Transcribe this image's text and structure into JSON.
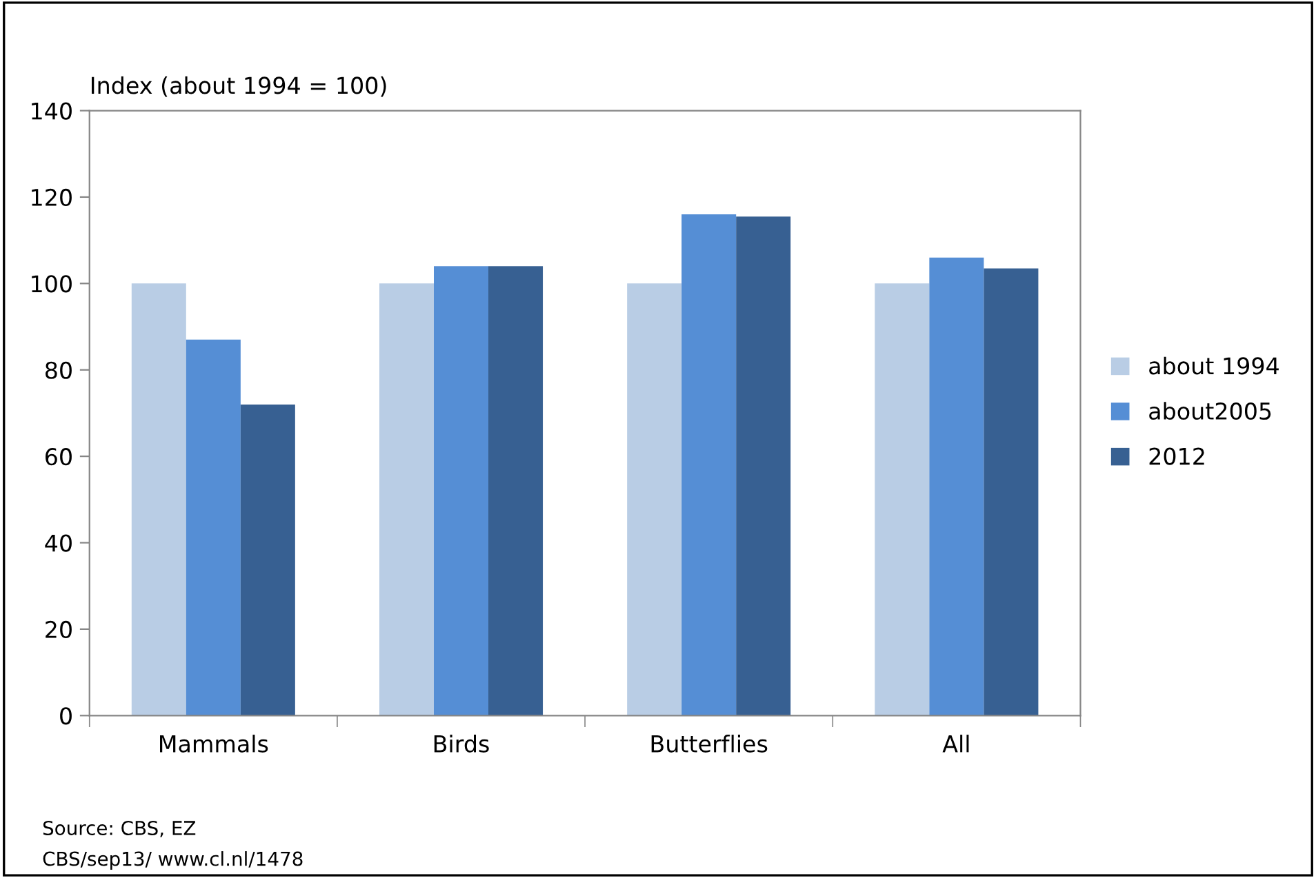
{
  "chart_data": {
    "type": "bar",
    "ylabel": "Index (about 1994 = 100)",
    "categories": [
      "Mammals",
      "Birds",
      "Butterflies",
      "All"
    ],
    "series": [
      {
        "name": "about 1994",
        "color": "#b9cde5",
        "values": [
          100,
          100,
          100,
          100
        ]
      },
      {
        "name": "about2005",
        "color": "#558ed5",
        "values": [
          87,
          104,
          116,
          106
        ]
      },
      {
        "name": "2012",
        "color": "#376092",
        "values": [
          72,
          104,
          115.5,
          103.5
        ]
      }
    ],
    "ylim": [
      0,
      140
    ],
    "yticks": [
      0,
      20,
      40,
      60,
      80,
      100,
      120,
      140
    ],
    "grid": false,
    "legend": "right",
    "annotations": [
      "Source: CBS, EZ",
      "CBS/sep13/ www.cl.nl/1478"
    ]
  }
}
